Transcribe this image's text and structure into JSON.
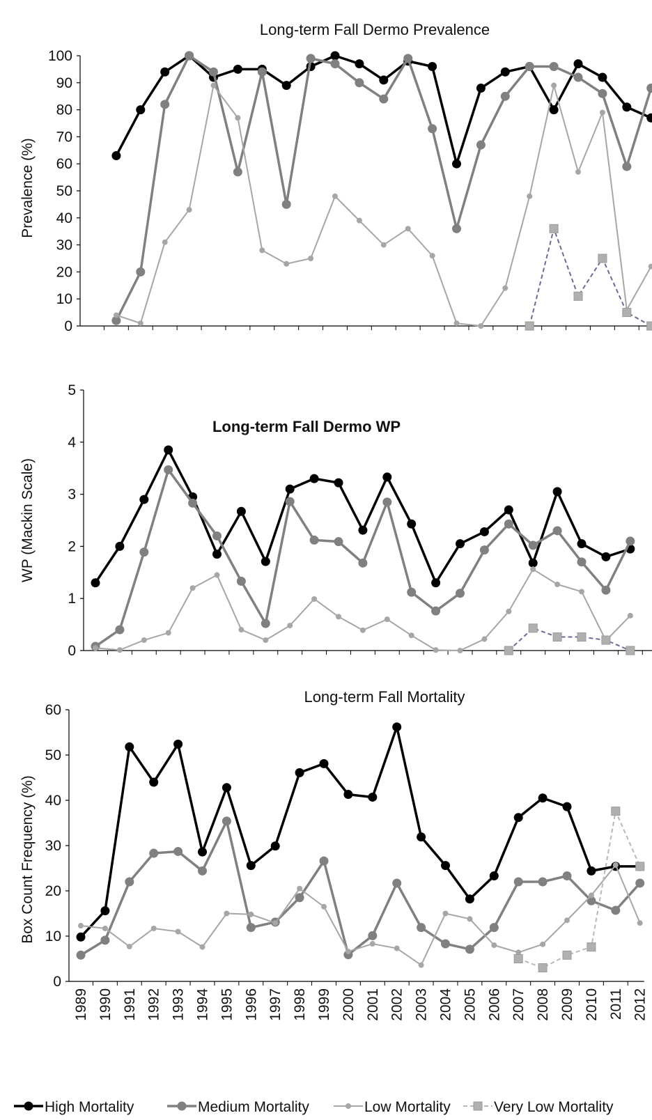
{
  "x_years": [
    "1989",
    "1990",
    "1991",
    "1992",
    "1993",
    "1994",
    "1995",
    "1996",
    "1997",
    "1998",
    "1999",
    "2000",
    "2001",
    "2002",
    "2003",
    "2004",
    "2005",
    "2006",
    "2007",
    "2008",
    "2009",
    "2010",
    "2011",
    "2012"
  ],
  "legend": {
    "high": "High Mortality",
    "medium": "Medium Mortality",
    "low": "Low Mortality",
    "very_low": "Very Low Mortality"
  },
  "colors": {
    "high": "#000000",
    "medium": "#808080",
    "low": "#a6a6a6",
    "very_low": "#b0b0b0",
    "very_low_line_prev": "#6a6a9a",
    "very_low_line_mort": "#b8b8b8"
  },
  "chart_data": [
    {
      "type": "line",
      "title": "Long-term Fall Dermo Prevalence",
      "ylabel": "Prevalence (%)",
      "ylim": [
        0,
        100
      ],
      "yticks": [
        "0",
        "10",
        "20",
        "30",
        "40",
        "50",
        "60",
        "70",
        "80",
        "90",
        "100"
      ],
      "x": [
        "1989",
        "1990",
        "1991",
        "1992",
        "1993",
        "1994",
        "1995",
        "1996",
        "1997",
        "1998",
        "1999",
        "2000",
        "2001",
        "2002",
        "2003",
        "2004",
        "2005",
        "2006",
        "2007",
        "2008",
        "2009",
        "2010",
        "2011",
        "2012"
      ],
      "series": [
        {
          "name": "High Mortality",
          "key": "high",
          "values": [
            null,
            63,
            80,
            94,
            100,
            92,
            95,
            95,
            89,
            96,
            100,
            97,
            91,
            98,
            96,
            60,
            88,
            94,
            96,
            80,
            97,
            92,
            81,
            77
          ]
        },
        {
          "name": "Medium Mortality",
          "key": "medium",
          "values": [
            null,
            2,
            20,
            82,
            100,
            94,
            57,
            94,
            45,
            99,
            97,
            90,
            84,
            99,
            73,
            36,
            67,
            85,
            96,
            96,
            92,
            86,
            59,
            88
          ]
        },
        {
          "name": "Low Mortality",
          "key": "low",
          "values": [
            null,
            4,
            1,
            31,
            43,
            89,
            77,
            28,
            23,
            25,
            48,
            39,
            30,
            36,
            26,
            1,
            0,
            14,
            48,
            89,
            57,
            79,
            6,
            22
          ]
        },
        {
          "name": "Very Low Mortality",
          "key": "very_low",
          "values": [
            null,
            null,
            null,
            null,
            null,
            null,
            null,
            null,
            null,
            null,
            null,
            null,
            null,
            null,
            null,
            null,
            null,
            null,
            0,
            36,
            11,
            25,
            5,
            0
          ]
        }
      ]
    },
    {
      "type": "line",
      "title": "Long-term Fall Dermo WP",
      "ylabel": "WP (Mackin Scale)",
      "ylim": [
        0,
        5
      ],
      "yticks": [
        "0",
        "1",
        "2",
        "3",
        "4",
        "5"
      ],
      "x": [
        "1989",
        "1990",
        "1991",
        "1992",
        "1993",
        "1994",
        "1995",
        "1996",
        "1997",
        "1998",
        "1999",
        "2000",
        "2001",
        "2002",
        "2003",
        "2004",
        "2005",
        "2006",
        "2007",
        "2008",
        "2009",
        "2010",
        "2011",
        "2012"
      ],
      "series": [
        {
          "name": "High Mortality",
          "key": "high",
          "values": [
            1.3,
            2.0,
            2.9,
            3.85,
            2.95,
            1.85,
            2.67,
            1.71,
            3.1,
            3.3,
            3.22,
            2.31,
            3.33,
            2.43,
            1.3,
            2.05,
            2.28,
            2.7,
            1.68,
            3.05,
            2.05,
            1.8,
            1.95,
            null
          ]
        },
        {
          "name": "Medium Mortality",
          "key": "medium",
          "values": [
            0.08,
            0.4,
            1.89,
            3.47,
            2.83,
            2.2,
            1.33,
            0.52,
            2.86,
            2.12,
            2.09,
            1.68,
            2.85,
            1.12,
            0.76,
            1.1,
            1.93,
            2.43,
            2.02,
            2.3,
            1.7,
            1.16,
            2.1,
            null
          ]
        },
        {
          "name": "Low Mortality",
          "key": "low",
          "values": [
            0.05,
            0.01,
            0.2,
            0.34,
            1.2,
            1.45,
            0.4,
            0.2,
            0.48,
            0.99,
            0.65,
            0.39,
            0.6,
            0.29,
            0.01,
            0.0,
            0.22,
            0.75,
            1.56,
            1.27,
            1.13,
            0.19,
            0.67,
            null
          ]
        },
        {
          "name": "Very Low Mortality",
          "key": "very_low",
          "values": [
            null,
            null,
            null,
            null,
            null,
            null,
            null,
            null,
            null,
            null,
            null,
            null,
            null,
            null,
            null,
            null,
            null,
            0.0,
            0.43,
            0.26,
            0.26,
            0.2,
            0.0,
            null
          ]
        }
      ]
    },
    {
      "type": "line",
      "title": "Long-term Fall Mortality",
      "ylabel": "Box Count Frequency (%)",
      "ylim": [
        0,
        60
      ],
      "yticks": [
        "0",
        "10",
        "20",
        "30",
        "40",
        "50",
        "60"
      ],
      "x": [
        "1989",
        "1990",
        "1991",
        "1992",
        "1993",
        "1994",
        "1995",
        "1996",
        "1997",
        "1998",
        "1999",
        "2000",
        "2001",
        "2002",
        "2003",
        "2004",
        "2005",
        "2006",
        "2007",
        "2008",
        "2009",
        "2010",
        "2011",
        "2012"
      ],
      "series": [
        {
          "name": "High Mortality",
          "key": "high",
          "values": [
            9.8,
            15.6,
            51.8,
            44.0,
            52.4,
            28.6,
            42.8,
            25.6,
            29.9,
            46.1,
            48.1,
            41.3,
            40.7,
            56.2,
            31.9,
            25.6,
            18.2,
            23.3,
            36.2,
            40.5,
            38.6,
            24.4,
            25.4,
            25.4
          ]
        },
        {
          "name": "Medium Mortality",
          "key": "medium",
          "values": [
            5.8,
            9.1,
            22.0,
            28.3,
            28.7,
            24.4,
            35.4,
            11.9,
            13.1,
            18.5,
            26.6,
            5.9,
            10.1,
            21.7,
            11.9,
            8.3,
            7.1,
            11.9,
            22.0,
            22.0,
            23.3,
            17.8,
            15.7,
            21.7
          ]
        },
        {
          "name": "Low Mortality",
          "key": "low",
          "values": [
            12.3,
            11.7,
            7.7,
            11.7,
            11.0,
            7.6,
            15.0,
            14.8,
            12.9,
            20.5,
            16.5,
            6.6,
            8.3,
            7.3,
            3.6,
            15.0,
            13.8,
            8.0,
            6.4,
            8.2,
            13.5,
            19.0,
            25.7,
            12.9
          ]
        },
        {
          "name": "Very Low Mortality",
          "key": "very_low",
          "values": [
            null,
            null,
            null,
            null,
            null,
            null,
            null,
            null,
            null,
            null,
            null,
            null,
            null,
            null,
            null,
            null,
            null,
            null,
            5.0,
            3.0,
            5.8,
            7.6,
            37.6,
            25.4
          ]
        }
      ]
    }
  ]
}
